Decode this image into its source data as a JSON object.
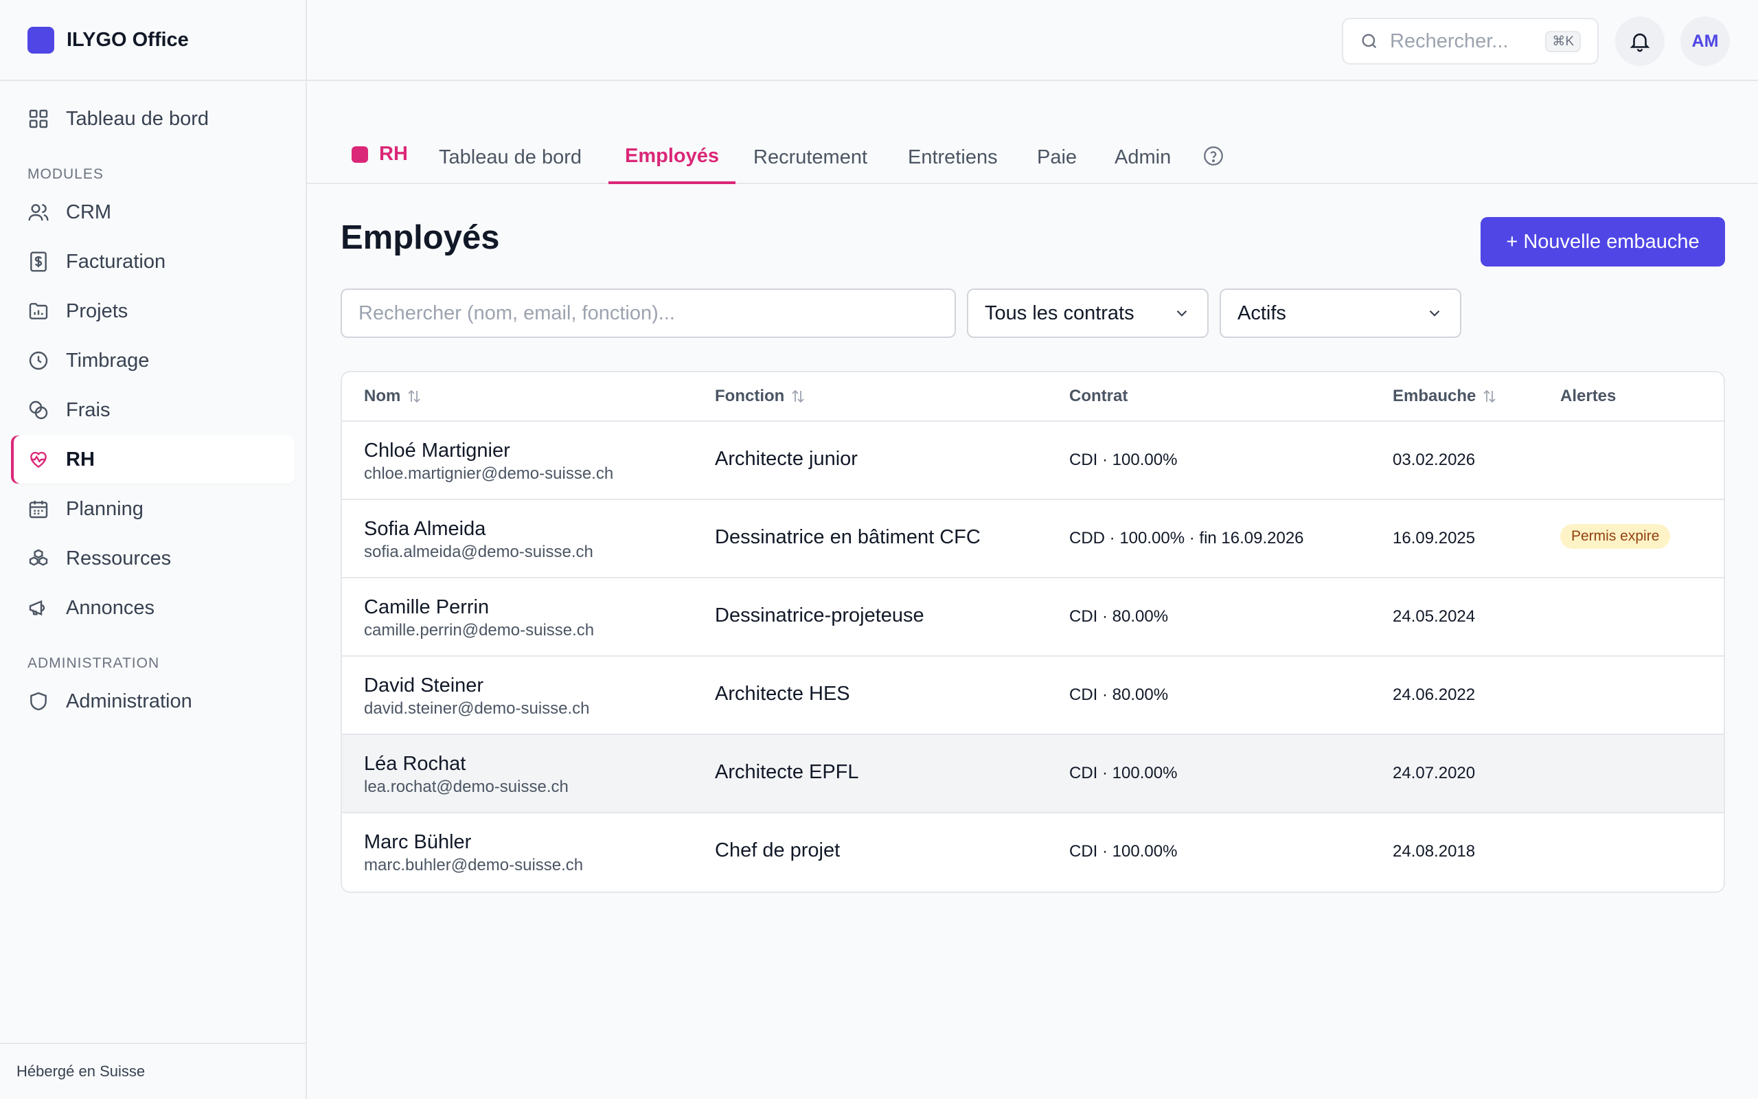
{
  "app": {
    "name": "ILYGO Office"
  },
  "sidebar": {
    "top_item": {
      "label": "Tableau de bord",
      "icon": "dashboard-icon"
    },
    "section_modules": "MODULES",
    "modules": [
      {
        "label": "CRM",
        "icon": "users-icon"
      },
      {
        "label": "Facturation",
        "icon": "invoice-icon"
      },
      {
        "label": "Projets",
        "icon": "folder-icon"
      },
      {
        "label": "Timbrage",
        "icon": "clock-icon"
      },
      {
        "label": "Frais",
        "icon": "coins-icon"
      },
      {
        "label": "RH",
        "icon": "heart-pulse-icon",
        "active": true
      },
      {
        "label": "Planning",
        "icon": "calendar-icon"
      },
      {
        "label": "Ressources",
        "icon": "boxes-icon"
      },
      {
        "label": "Annonces",
        "icon": "megaphone-icon"
      }
    ],
    "section_admin": "ADMINISTRATION",
    "admin_item": {
      "label": "Administration",
      "icon": "shield-icon"
    },
    "footer": "Hébergé en Suisse"
  },
  "topbar": {
    "search_placeholder": "Rechercher...",
    "shortcut": "⌘K",
    "avatar_initials": "AM"
  },
  "module_tabs": {
    "module_label": "RH",
    "tabs": [
      "Tableau de bord",
      "Employés",
      "Recrutement",
      "Entretiens",
      "Paie",
      "Admin"
    ],
    "active_tab": "Employés"
  },
  "page": {
    "title": "Employés",
    "new_button": "+ Nouvelle embauche",
    "filter_placeholder": "Rechercher (nom, email, fonction)...",
    "contract_filter": "Tous les contrats",
    "status_filter": "Actifs"
  },
  "table": {
    "headers": {
      "name": "Nom",
      "function": "Fonction",
      "contract": "Contrat",
      "hire": "Embauche",
      "alerts": "Alertes"
    },
    "rows": [
      {
        "name": "Chloé Martignier",
        "email": "chloe.martignier@demo-suisse.ch",
        "function": "Architecte junior",
        "contract": "CDI · 100.00%",
        "hire": "03.02.2026",
        "alert": ""
      },
      {
        "name": "Sofia Almeida",
        "email": "sofia.almeida@demo-suisse.ch",
        "function": "Dessinatrice en bâtiment CFC",
        "contract": "CDD · 100.00% · fin 16.09.2026",
        "hire": "16.09.2025",
        "alert": "Permis expire"
      },
      {
        "name": "Camille Perrin",
        "email": "camille.perrin@demo-suisse.ch",
        "function": "Dessinatrice-projeteuse",
        "contract": "CDI · 80.00%",
        "hire": "24.05.2024",
        "alert": ""
      },
      {
        "name": "David Steiner",
        "email": "david.steiner@demo-suisse.ch",
        "function": "Architecte HES",
        "contract": "CDI · 80.00%",
        "hire": "24.06.2022",
        "alert": ""
      },
      {
        "name": "Léa Rochat",
        "email": "lea.rochat@demo-suisse.ch",
        "function": "Architecte EPFL",
        "contract": "CDI · 100.00%",
        "hire": "24.07.2020",
        "alert": ""
      },
      {
        "name": "Marc Bühler",
        "email": "marc.buhler@demo-suisse.ch",
        "function": "Chef de projet",
        "contract": "CDI · 100.00%",
        "hire": "24.08.2018",
        "alert": ""
      }
    ]
  },
  "colors": {
    "accent": "#4f46e5",
    "module": "#db2777",
    "badge_bg": "#fef3c7",
    "badge_text": "#92400e"
  }
}
